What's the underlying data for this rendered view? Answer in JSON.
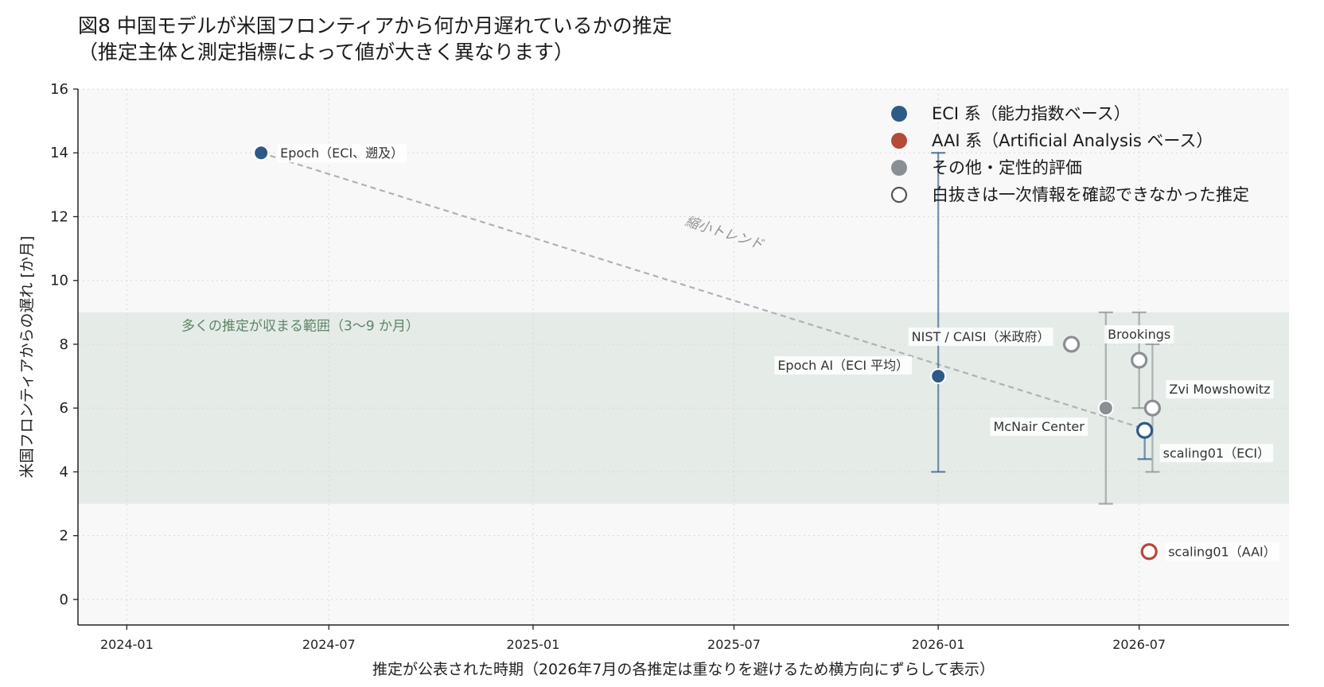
{
  "title": {
    "line1": "図8 中国モデルが米国フロンティアから何か月遅れているかの推定",
    "line2": "（推定主体と測定指標によって値が大きく異なります）"
  },
  "colors": {
    "eci": "#2e5a88",
    "aai": "#b34a3a",
    "other": "#8a8f94",
    "band": "#dde6df",
    "trend": "#aeb2b6",
    "grid": "#d8d8d8",
    "plot_bg": "#f8f8f8"
  },
  "chart_data": {
    "type": "scatter",
    "title": "図8 中国モデルが米国フロンティアから何か月遅れているかの推定",
    "xlabel": "推定が公表された時期（2026年7月の各推定は重なりを避けるため横方向にずらして表示）",
    "ylabel": "米国フロンティアからの遅れ [か月]",
    "x_ticks": [
      "2024-01",
      "2024-07",
      "2025-01",
      "2025-07",
      "2026-01",
      "2026-07"
    ],
    "xlim": [
      "2023-11-18",
      "2026-11-13"
    ],
    "ylim": [
      -0.8,
      16
    ],
    "y_ticks": [
      0,
      2,
      4,
      6,
      8,
      10,
      12,
      14,
      16
    ],
    "grid": true,
    "legend_position": "top-right",
    "legend": [
      {
        "label": "ECI 系（能力指数ベース）",
        "category": "eci",
        "filled": true
      },
      {
        "label": "AAI 系（Artificial Analysis ベース）",
        "category": "aai",
        "filled": true
      },
      {
        "label": "その他・定性的評価",
        "category": "other",
        "filled": true
      },
      {
        "label": "白抜きは一次情報を確認できなかった推定",
        "category": "other",
        "filled": false
      }
    ],
    "band": {
      "y_from": 3,
      "y_to": 9,
      "label": "多くの推定が収まる範囲（3〜9 か月）"
    },
    "trend": {
      "label": "縮小トレンド",
      "from": {
        "x": "2024-05-01",
        "y": 14
      },
      "to": {
        "x": "2026-07-01",
        "y": 5.4
      }
    },
    "points": [
      {
        "label": "Epoch（ECI、遡及）",
        "x": "2024-05-01",
        "y": 14,
        "category": "eci",
        "filled": true,
        "label_pos": "right"
      },
      {
        "label": "Epoch AI（ECI 平均）",
        "x": "2026-01-01",
        "y": 7,
        "err_low": 4,
        "err_high": 14,
        "category": "eci",
        "filled": true,
        "label_pos": "upper-left"
      },
      {
        "label": "NIST / CAISI（米政府）",
        "x": "2026-05-01",
        "y": 8,
        "category": "other",
        "filled": false,
        "label_pos": "left"
      },
      {
        "label": "McNair Center",
        "x": "2026-06-01",
        "y": 6,
        "err_low": 3,
        "err_high": 9,
        "category": "other",
        "filled": true,
        "label_pos": "lower-left"
      },
      {
        "label": "Brookings",
        "x": "2026-07-01",
        "y": 7.5,
        "err_low": 6,
        "err_high": 9,
        "category": "other",
        "filled": false,
        "label_pos": "above"
      },
      {
        "label": "scaling01（ECI）",
        "x": "2026-07-06",
        "y": 5.3,
        "err_low": 4.4,
        "err_high": 5.3,
        "category": "eci",
        "filled": false,
        "label_pos": "lower-right"
      },
      {
        "label": "Zvi Mowshowitz",
        "x": "2026-07-13",
        "y": 6,
        "err_low": 4,
        "err_high": 8,
        "category": "other",
        "filled": false,
        "label_pos": "upper-right"
      },
      {
        "label": "scaling01（AAI）",
        "x": "2026-07-10",
        "y": 1.5,
        "category": "aai",
        "filled": false,
        "label_pos": "right"
      }
    ]
  }
}
